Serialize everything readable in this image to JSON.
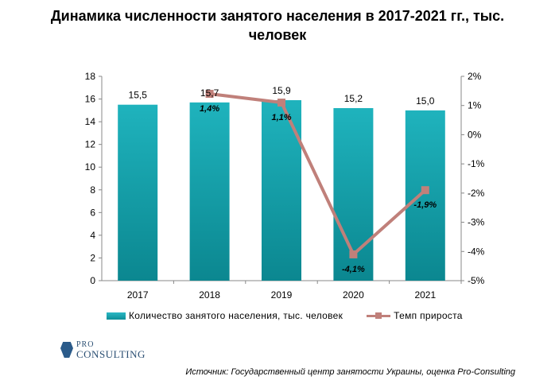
{
  "title_line1": "Динамика численности занятого населения в 2017-2021 гг., тыс.",
  "title_line2": "человек",
  "logo": {
    "pro": "PRO",
    "consulting": "CONSULTING"
  },
  "source": "Источник: Государственный центр занятости Украины, оценка Pro-Consulting",
  "colors": {
    "bar": "#13a3ad",
    "line": "#c0807a"
  },
  "chart_data": {
    "type": "bar",
    "categories": [
      "2017",
      "2018",
      "2019",
      "2020",
      "2021"
    ],
    "series": [
      {
        "name": "Количество занятого населения, тыс. человек",
        "type": "bar",
        "axis": "left",
        "values": [
          15.5,
          15.7,
          15.9,
          15.2,
          15.0
        ],
        "labels": [
          "15,5",
          "15,7",
          "15,9",
          "15,2",
          "15,0"
        ]
      },
      {
        "name": "Темп прироста",
        "type": "line",
        "axis": "right",
        "values": [
          null,
          1.4,
          1.1,
          -4.1,
          -1.9
        ],
        "labels": [
          "",
          "1,4%",
          "1,1%",
          "-4,1%",
          "-1,9%"
        ]
      }
    ],
    "y_left": {
      "min": 0,
      "max": 18,
      "ticks": [
        "0",
        "2",
        "4",
        "6",
        "8",
        "10",
        "12",
        "14",
        "16",
        "18"
      ]
    },
    "y_right": {
      "min": -5,
      "max": 2,
      "ticks": [
        "-5%",
        "-4%",
        "-3%",
        "-2%",
        "-1%",
        "0%",
        "1%",
        "2%"
      ]
    },
    "legend": "bottom",
    "grid": false
  }
}
